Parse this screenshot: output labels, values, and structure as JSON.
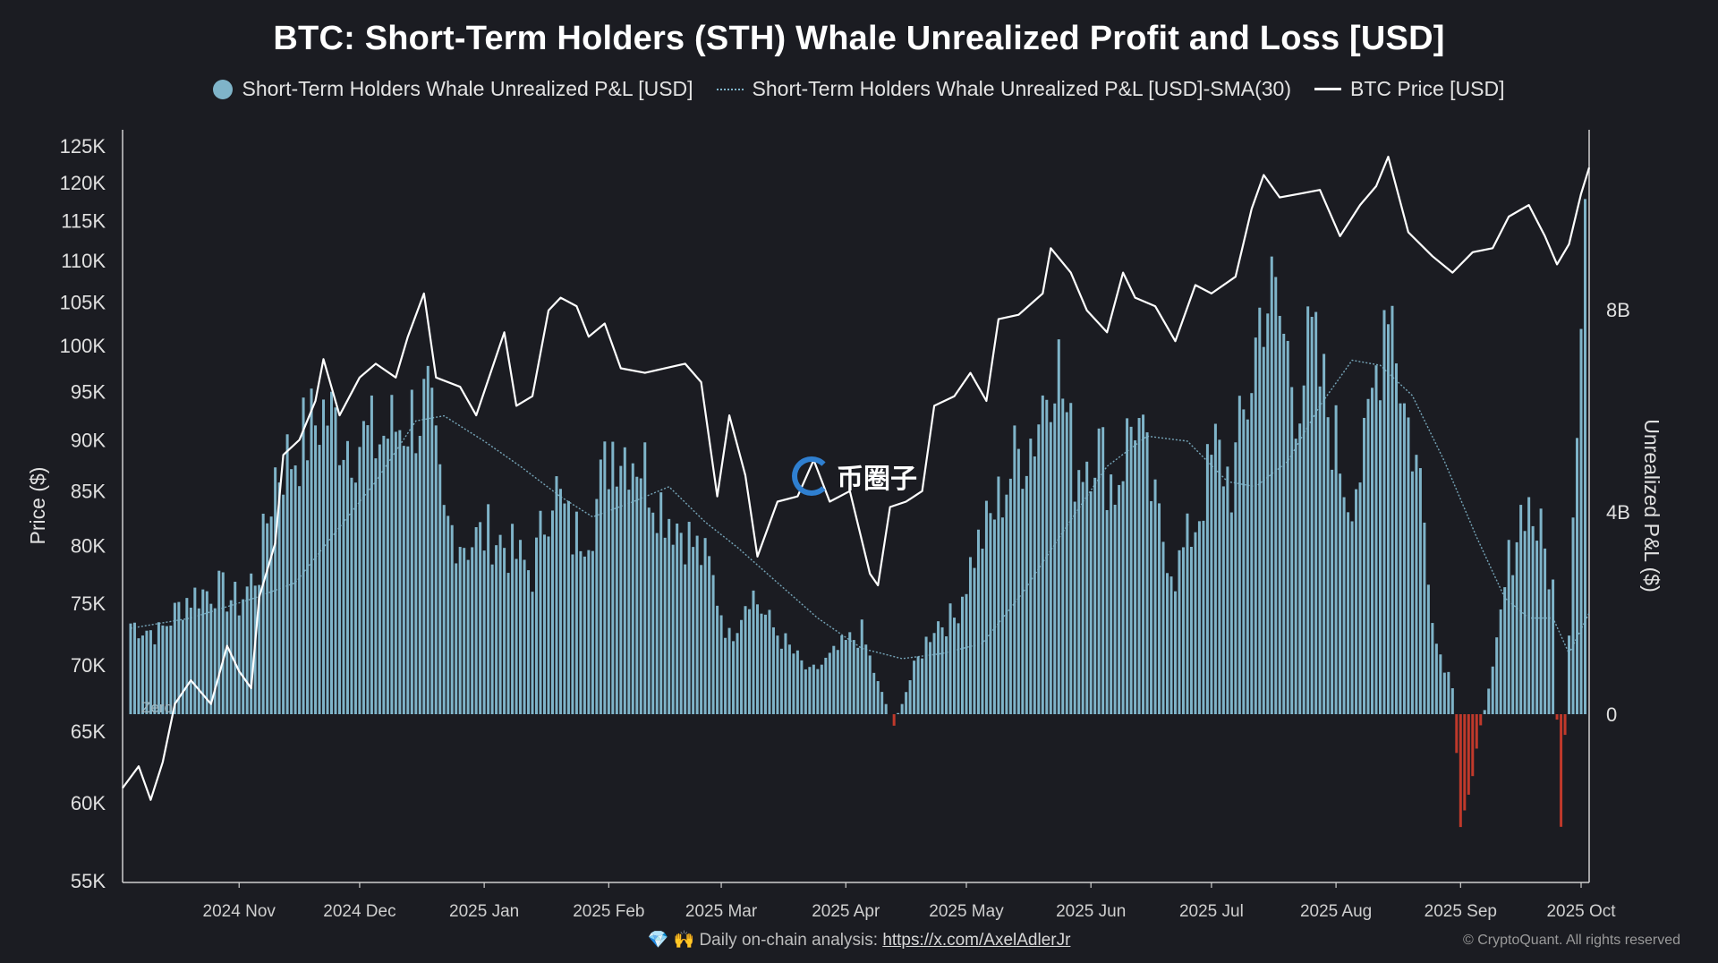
{
  "title": "BTC: Short-Term Holders (STH) Whale Unrealized Profit and Loss [USD]",
  "legend": {
    "bars": "Short-Term Holders Whale Unrealized P&L [USD]",
    "sma": "Short-Term Holders Whale Unrealized P&L [USD]-SMA(30)",
    "price": "BTC Price [USD]"
  },
  "watermark": "币圈子",
  "footer": {
    "emoji": "💎 🙌",
    "text": "Daily on-chain analysis:",
    "link": "https://x.com/AxelAdlerJr",
    "copyright": "© CryptoQuant. All rights reserved"
  },
  "colors": {
    "background": "#1b1c22",
    "bar_positive": "#7fb4c9",
    "bar_negative": "#c0392b",
    "sma": "#7fb4c9",
    "price": "#ffffff",
    "axis": "#cfcfcf"
  },
  "chart_data": {
    "type": "bar",
    "zero_label": "Zero",
    "y_left": {
      "label": "Price ($)",
      "scale": "log",
      "ticks": [
        {
          "value": 55000,
          "label": "55K"
        },
        {
          "value": 60000,
          "label": "60K"
        },
        {
          "value": 65000,
          "label": "65K"
        },
        {
          "value": 70000,
          "label": "70K"
        },
        {
          "value": 75000,
          "label": "75K"
        },
        {
          "value": 80000,
          "label": "80K"
        },
        {
          "value": 85000,
          "label": "85K"
        },
        {
          "value": 90000,
          "label": "90K"
        },
        {
          "value": 95000,
          "label": "95K"
        },
        {
          "value": 100000,
          "label": "100K"
        },
        {
          "value": 105000,
          "label": "105K"
        },
        {
          "value": 110000,
          "label": "110K"
        },
        {
          "value": 115000,
          "label": "115K"
        },
        {
          "value": 120000,
          "label": "120K"
        },
        {
          "value": 125000,
          "label": "125K"
        }
      ]
    },
    "y_right": {
      "label": "Unrealized P&L ($)",
      "ticks": [
        {
          "value": 0,
          "label": "0"
        },
        {
          "value": 4000000000,
          "label": "4B"
        },
        {
          "value": 8000000000,
          "label": "8B"
        }
      ]
    },
    "x_axis": {
      "ticks": [
        {
          "date": "2024-11-01",
          "label": "2024 Nov"
        },
        {
          "date": "2024-12-01",
          "label": "2024 Dec"
        },
        {
          "date": "2025-01-01",
          "label": "2025 Jan"
        },
        {
          "date": "2025-02-01",
          "label": "2025 Feb"
        },
        {
          "date": "2025-03-01",
          "label": "2025 Mar"
        },
        {
          "date": "2025-04-01",
          "label": "2025 Apr"
        },
        {
          "date": "2025-05-01",
          "label": "2025 May"
        },
        {
          "date": "2025-06-01",
          "label": "2025 Jun"
        },
        {
          "date": "2025-07-01",
          "label": "2025 Jul"
        },
        {
          "date": "2025-08-01",
          "label": "2025 Aug"
        },
        {
          "date": "2025-09-01",
          "label": "2025 Sep"
        },
        {
          "date": "2025-10-01",
          "label": "2025 Oct"
        }
      ],
      "range": [
        "2024-10-03",
        "2025-10-03"
      ]
    },
    "series": [
      {
        "name": "Short-Term Holders Whale Unrealized P&L [USD]",
        "kind": "bar",
        "unit": "USD",
        "points": [
          [
            "2024-10-05",
            1800000000.0
          ],
          [
            "2024-10-12",
            1600000000.0
          ],
          [
            "2024-10-19",
            2300000000.0
          ],
          [
            "2024-10-26",
            2500000000.0
          ],
          [
            "2024-11-01",
            2200000000.0
          ],
          [
            "2024-11-06",
            2900000000.0
          ],
          [
            "2024-11-10",
            4800000000.0
          ],
          [
            "2024-11-15",
            5200000000.0
          ],
          [
            "2024-11-22",
            6000000000.0
          ],
          [
            "2024-11-28",
            5500000000.0
          ],
          [
            "2024-12-05",
            5400000000.0
          ],
          [
            "2024-12-12",
            5800000000.0
          ],
          [
            "2024-12-18",
            6100000000.0
          ],
          [
            "2024-12-22",
            3800000000.0
          ],
          [
            "2024-12-28",
            3400000000.0
          ],
          [
            "2025-01-03",
            3600000000.0
          ],
          [
            "2025-01-08",
            3200000000.0
          ],
          [
            "2025-01-13",
            2800000000.0
          ],
          [
            "2025-01-18",
            4600000000.0
          ],
          [
            "2025-01-23",
            3500000000.0
          ],
          [
            "2025-01-28",
            3900000000.0
          ],
          [
            "2025-02-02",
            5400000000.0
          ],
          [
            "2025-02-08",
            5200000000.0
          ],
          [
            "2025-02-14",
            4200000000.0
          ],
          [
            "2025-02-20",
            3600000000.0
          ],
          [
            "2025-02-26",
            2900000000.0
          ],
          [
            "2025-03-03",
            1500000000.0
          ],
          [
            "2025-03-08",
            2500000000.0
          ],
          [
            "2025-03-13",
            1800000000.0
          ],
          [
            "2025-03-18",
            1300000000.0
          ],
          [
            "2025-03-23",
            800000000.0
          ],
          [
            "2025-03-28",
            1100000000.0
          ],
          [
            "2025-04-01",
            1400000000.0
          ],
          [
            "2025-04-05",
            1600000000.0
          ],
          [
            "2025-04-09",
            600000000.0
          ],
          [
            "2025-04-13",
            -200000000.0
          ],
          [
            "2025-04-18",
            900000000.0
          ],
          [
            "2025-04-23",
            1800000000.0
          ],
          [
            "2025-04-28",
            1900000000.0
          ],
          [
            "2025-05-03",
            3200000000.0
          ],
          [
            "2025-05-08",
            4000000000.0
          ],
          [
            "2025-05-13",
            5000000000.0
          ],
          [
            "2025-05-18",
            5600000000.0
          ],
          [
            "2025-05-23",
            7300000000.0
          ],
          [
            "2025-05-28",
            4900000000.0
          ],
          [
            "2025-06-02",
            5400000000.0
          ],
          [
            "2025-06-07",
            4500000000.0
          ],
          [
            "2025-06-12",
            6000000000.0
          ],
          [
            "2025-06-17",
            4000000000.0
          ],
          [
            "2025-06-22",
            2800000000.0
          ],
          [
            "2025-06-27",
            3800000000.0
          ],
          [
            "2025-07-02",
            5200000000.0
          ],
          [
            "2025-07-06",
            4600000000.0
          ],
          [
            "2025-07-10",
            6200000000.0
          ],
          [
            "2025-07-14",
            8400000000.0
          ],
          [
            "2025-07-18",
            7800000000.0
          ],
          [
            "2025-07-22",
            6400000000.0
          ],
          [
            "2025-07-26",
            7200000000.0
          ],
          [
            "2025-07-30",
            6000000000.0
          ],
          [
            "2025-08-04",
            4400000000.0
          ],
          [
            "2025-08-08",
            5000000000.0
          ],
          [
            "2025-08-12",
            7400000000.0
          ],
          [
            "2025-08-14",
            8800000000.0
          ],
          [
            "2025-08-18",
            6100000000.0
          ],
          [
            "2025-08-22",
            4600000000.0
          ],
          [
            "2025-08-26",
            1400000000.0
          ],
          [
            "2025-08-30",
            600000000.0
          ],
          [
            "2025-09-01",
            -2400000000.0
          ],
          [
            "2025-09-05",
            -600000000.0
          ],
          [
            "2025-09-09",
            800000000.0
          ],
          [
            "2025-09-13",
            3000000000.0
          ],
          [
            "2025-09-17",
            4300000000.0
          ],
          [
            "2025-09-21",
            3500000000.0
          ],
          [
            "2025-09-24",
            2500000000.0
          ],
          [
            "2025-09-26",
            -2700000000.0
          ],
          [
            "2025-09-28",
            1800000000.0
          ],
          [
            "2025-09-30",
            6500000000.0
          ],
          [
            "2025-10-02",
            10200000000.0
          ]
        ]
      },
      {
        "name": "Short-Term Holders Whale Unrealized P&L [USD]-SMA(30)",
        "kind": "line",
        "unit": "USD",
        "points": [
          [
            "2024-10-05",
            1700000000.0
          ],
          [
            "2024-10-20",
            1900000000.0
          ],
          [
            "2024-11-05",
            2300000000.0
          ],
          [
            "2024-11-15",
            2600000000.0
          ],
          [
            "2024-11-25",
            3600000000.0
          ],
          [
            "2024-12-05",
            4600000000.0
          ],
          [
            "2024-12-15",
            5800000000.0
          ],
          [
            "2024-12-22",
            5900000000.0
          ],
          [
            "2025-01-01",
            5400000000.0
          ],
          [
            "2025-01-10",
            4900000000.0
          ],
          [
            "2025-01-20",
            4300000000.0
          ],
          [
            "2025-01-28",
            3900000000.0
          ],
          [
            "2025-02-07",
            4200000000.0
          ],
          [
            "2025-02-16",
            4500000000.0
          ],
          [
            "2025-02-25",
            3800000000.0
          ],
          [
            "2025-03-05",
            3300000000.0
          ],
          [
            "2025-03-15",
            2600000000.0
          ],
          [
            "2025-03-25",
            1900000000.0
          ],
          [
            "2025-04-05",
            1300000000.0
          ],
          [
            "2025-04-15",
            1100000000.0
          ],
          [
            "2025-04-25",
            1200000000.0
          ],
          [
            "2025-05-05",
            1400000000.0
          ],
          [
            "2025-05-15",
            2400000000.0
          ],
          [
            "2025-05-25",
            3600000000.0
          ],
          [
            "2025-06-05",
            4900000000.0
          ],
          [
            "2025-06-15",
            5500000000.0
          ],
          [
            "2025-06-25",
            5400000000.0
          ],
          [
            "2025-07-05",
            4600000000.0
          ],
          [
            "2025-07-12",
            4500000000.0
          ],
          [
            "2025-07-20",
            5000000000.0
          ],
          [
            "2025-07-28",
            6100000000.0
          ],
          [
            "2025-08-05",
            7000000000.0
          ],
          [
            "2025-08-12",
            6900000000.0
          ],
          [
            "2025-08-20",
            6300000000.0
          ],
          [
            "2025-08-28",
            5000000000.0
          ],
          [
            "2025-09-05",
            3500000000.0
          ],
          [
            "2025-09-12",
            2300000000.0
          ],
          [
            "2025-09-18",
            1900000000.0
          ],
          [
            "2025-09-24",
            1900000000.0
          ],
          [
            "2025-09-28",
            1200000000.0
          ],
          [
            "2025-10-03",
            2000000000.0
          ]
        ]
      },
      {
        "name": "BTC Price [USD]",
        "kind": "line",
        "unit": "USD",
        "axis": "left",
        "points": [
          [
            "2024-10-03",
            61000
          ],
          [
            "2024-10-07",
            62500
          ],
          [
            "2024-10-10",
            60200
          ],
          [
            "2024-10-13",
            62800
          ],
          [
            "2024-10-16",
            67000
          ],
          [
            "2024-10-20",
            68800
          ],
          [
            "2024-10-25",
            67000
          ],
          [
            "2024-10-29",
            71500
          ],
          [
            "2024-11-01",
            69500
          ],
          [
            "2024-11-04",
            68200
          ],
          [
            "2024-11-06",
            75500
          ],
          [
            "2024-11-10",
            80200
          ],
          [
            "2024-11-12",
            88500
          ],
          [
            "2024-11-16",
            90000
          ],
          [
            "2024-11-20",
            94000
          ],
          [
            "2024-11-22",
            98500
          ],
          [
            "2024-11-26",
            92500
          ],
          [
            "2024-12-01",
            96500
          ],
          [
            "2024-12-05",
            98000
          ],
          [
            "2024-12-10",
            96500
          ],
          [
            "2024-12-13",
            101000
          ],
          [
            "2024-12-17",
            106000
          ],
          [
            "2024-12-20",
            96500
          ],
          [
            "2024-12-26",
            95500
          ],
          [
            "2024-12-30",
            92500
          ],
          [
            "2025-01-06",
            101500
          ],
          [
            "2025-01-09",
            93500
          ],
          [
            "2025-01-13",
            94500
          ],
          [
            "2025-01-17",
            104000
          ],
          [
            "2025-01-20",
            105500
          ],
          [
            "2025-01-24",
            104500
          ],
          [
            "2025-01-27",
            101000
          ],
          [
            "2025-01-31",
            102500
          ],
          [
            "2025-02-04",
            97500
          ],
          [
            "2025-02-10",
            97000
          ],
          [
            "2025-02-20",
            98000
          ],
          [
            "2025-02-24",
            96000
          ],
          [
            "2025-02-28",
            84500
          ],
          [
            "2025-03-03",
            92500
          ],
          [
            "2025-03-07",
            86500
          ],
          [
            "2025-03-10",
            79000
          ],
          [
            "2025-03-15",
            84000
          ],
          [
            "2025-03-20",
            84500
          ],
          [
            "2025-03-24",
            88000
          ],
          [
            "2025-03-28",
            84000
          ],
          [
            "2025-04-02",
            85000
          ],
          [
            "2025-04-07",
            77500
          ],
          [
            "2025-04-09",
            76500
          ],
          [
            "2025-04-12",
            83500
          ],
          [
            "2025-04-16",
            84000
          ],
          [
            "2025-04-20",
            85000
          ],
          [
            "2025-04-23",
            93500
          ],
          [
            "2025-04-28",
            94500
          ],
          [
            "2025-05-02",
            97000
          ],
          [
            "2025-05-06",
            94000
          ],
          [
            "2025-05-09",
            103000
          ],
          [
            "2025-05-14",
            103500
          ],
          [
            "2025-05-20",
            106000
          ],
          [
            "2025-05-22",
            111500
          ],
          [
            "2025-05-27",
            108500
          ],
          [
            "2025-05-31",
            104000
          ],
          [
            "2025-06-05",
            101500
          ],
          [
            "2025-06-09",
            108500
          ],
          [
            "2025-06-12",
            105500
          ],
          [
            "2025-06-17",
            104500
          ],
          [
            "2025-06-22",
            100500
          ],
          [
            "2025-06-27",
            107000
          ],
          [
            "2025-07-01",
            106000
          ],
          [
            "2025-07-07",
            108000
          ],
          [
            "2025-07-11",
            116500
          ],
          [
            "2025-07-14",
            121000
          ],
          [
            "2025-07-18",
            118000
          ],
          [
            "2025-07-23",
            118500
          ],
          [
            "2025-07-28",
            119000
          ],
          [
            "2025-08-02",
            113000
          ],
          [
            "2025-08-07",
            117000
          ],
          [
            "2025-08-11",
            119500
          ],
          [
            "2025-08-14",
            123500
          ],
          [
            "2025-08-19",
            113500
          ],
          [
            "2025-08-25",
            110500
          ],
          [
            "2025-08-30",
            108500
          ],
          [
            "2025-09-04",
            111000
          ],
          [
            "2025-09-09",
            111500
          ],
          [
            "2025-09-13",
            115500
          ],
          [
            "2025-09-18",
            117000
          ],
          [
            "2025-09-22",
            113000
          ],
          [
            "2025-09-25",
            109500
          ],
          [
            "2025-09-28",
            112000
          ],
          [
            "2025-10-01",
            118500
          ],
          [
            "2025-10-03",
            122000
          ]
        ]
      }
    ]
  }
}
